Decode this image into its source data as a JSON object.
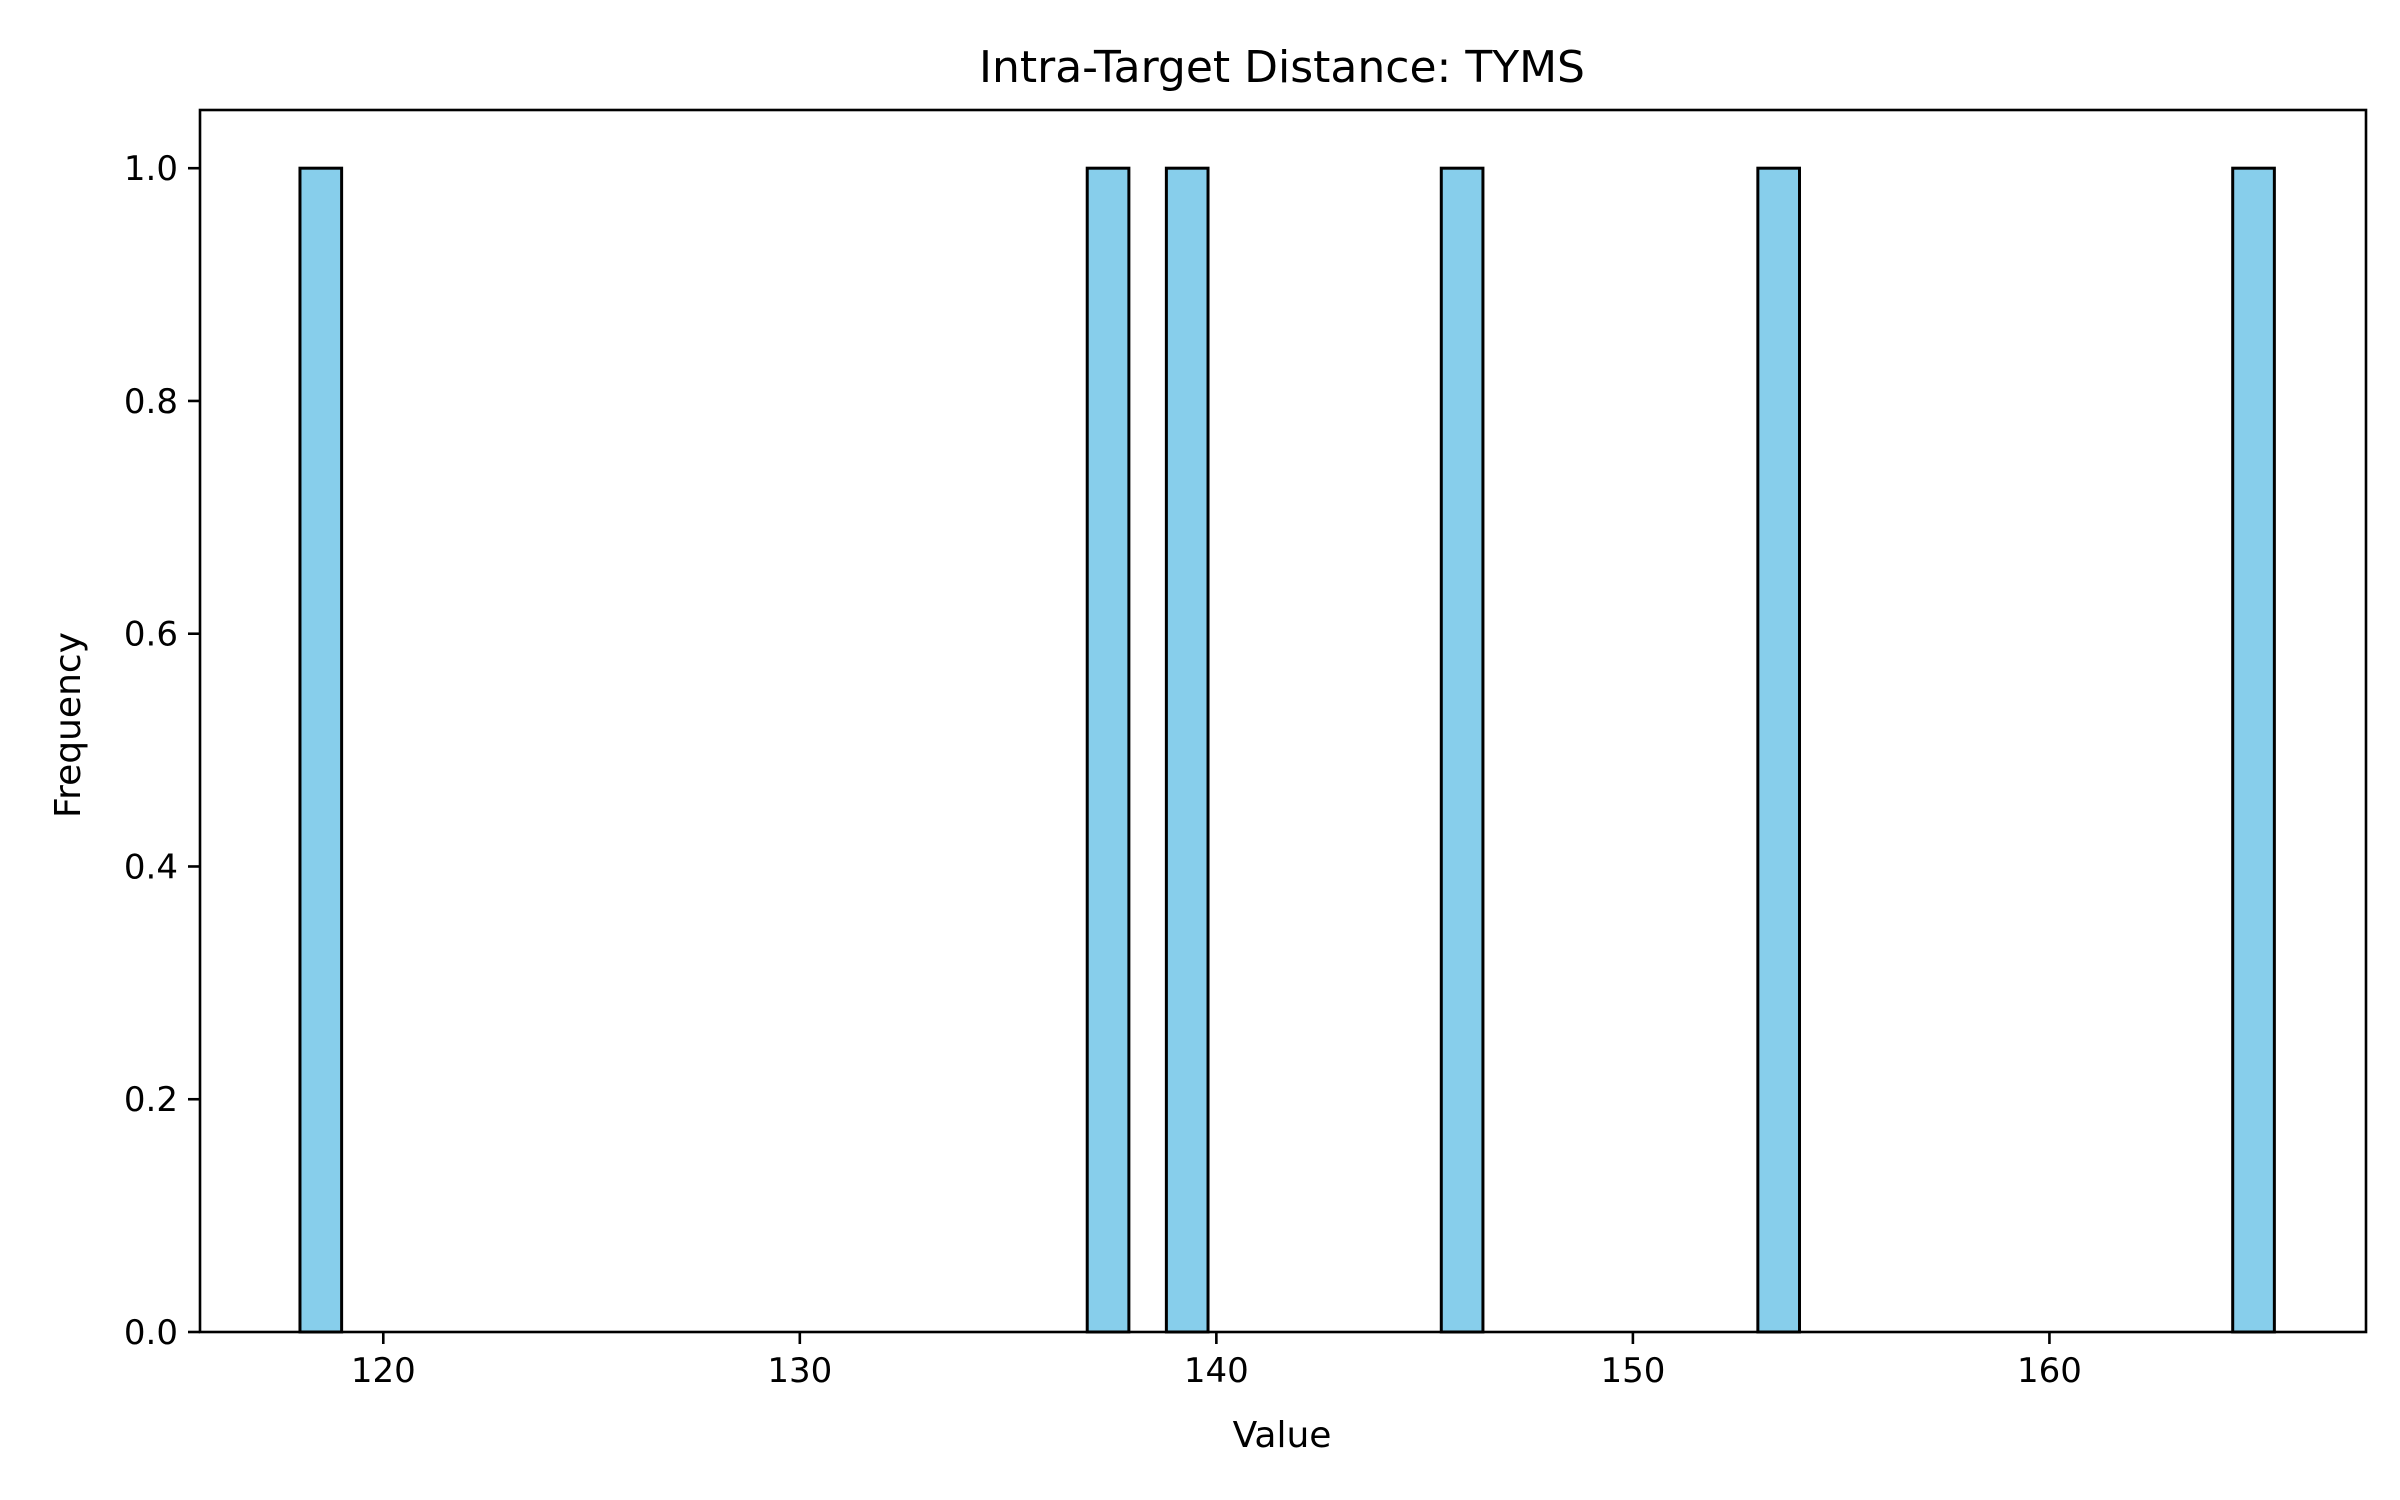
{
  "chart_data": {
    "type": "bar",
    "title": "Intra-Target Distance: TYMS",
    "xlabel": "Value",
    "ylabel": "Frequency",
    "xlim": [
      115.6,
      167.6
    ],
    "ylim": [
      0,
      1.05
    ],
    "xticks": [
      120,
      130,
      140,
      150,
      160
    ],
    "yticks": [
      0.0,
      0.2,
      0.4,
      0.6,
      0.8,
      1.0
    ],
    "ytick_labels": [
      "0.0",
      "0.2",
      "0.4",
      "0.6",
      "0.8",
      "1.0"
    ],
    "bins": [
      {
        "x0": 118.0,
        "x1": 119.0,
        "count": 1
      },
      {
        "x0": 136.9,
        "x1": 137.9,
        "count": 1
      },
      {
        "x0": 138.8,
        "x1": 139.8,
        "count": 1
      },
      {
        "x0": 145.4,
        "x1": 146.4,
        "count": 1
      },
      {
        "x0": 153.0,
        "x1": 154.0,
        "count": 1
      },
      {
        "x0": 164.4,
        "x1": 165.4,
        "count": 1
      }
    ],
    "bar_color": "#87ceeb",
    "edge_color": "#000000",
    "grid": false,
    "legend": false
  }
}
